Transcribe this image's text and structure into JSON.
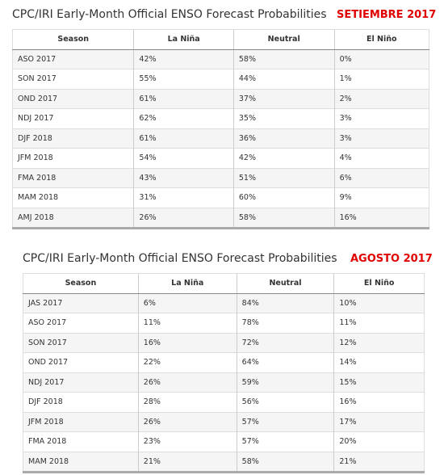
{
  "tables": [
    {
      "title": "CPC/IRI Early-Month Official ENSO Forecast Probabilities",
      "tag": "SETIEMBRE 2017",
      "header": [
        "Season",
        "La Niña",
        "Neutral",
        "El Niño"
      ],
      "rows": [
        [
          "ASO 2017",
          "42%",
          "58%",
          "0%"
        ],
        [
          "SON 2017",
          "55%",
          "44%",
          "1%"
        ],
        [
          "OND 2017",
          "61%",
          "37%",
          "2%"
        ],
        [
          "NDJ 2017",
          "62%",
          "35%",
          "3%"
        ],
        [
          "DJF 2018",
          "61%",
          "36%",
          "3%"
        ],
        [
          "JFM 2018",
          "54%",
          "42%",
          "4%"
        ],
        [
          "FMA 2018",
          "43%",
          "51%",
          "6%"
        ],
        [
          "MAM 2018",
          "31%",
          "60%",
          "9%"
        ],
        [
          "AMJ 2018",
          "26%",
          "58%",
          "16%"
        ]
      ]
    },
    {
      "title": "CPC/IRI Early-Month Official ENSO Forecast Probabilities",
      "tag": "AGOSTO 2017",
      "header": [
        "Season",
        "La Niña",
        "Neutral",
        "El Niño"
      ],
      "rows": [
        [
          "JAS 2017",
          "6%",
          "84%",
          "10%"
        ],
        [
          "ASO 2017",
          "11%",
          "78%",
          "11%"
        ],
        [
          "SON 2017",
          "16%",
          "72%",
          "12%"
        ],
        [
          "OND 2017",
          "22%",
          "64%",
          "14%"
        ],
        [
          "NDJ 2017",
          "26%",
          "59%",
          "15%"
        ],
        [
          "DJF 2018",
          "28%",
          "56%",
          "16%"
        ],
        [
          "JFM 2018",
          "26%",
          "57%",
          "17%"
        ],
        [
          "FMA 2018",
          "23%",
          "57%",
          "20%"
        ],
        [
          "MAM 2018",
          "21%",
          "58%",
          "21%"
        ]
      ]
    }
  ]
}
